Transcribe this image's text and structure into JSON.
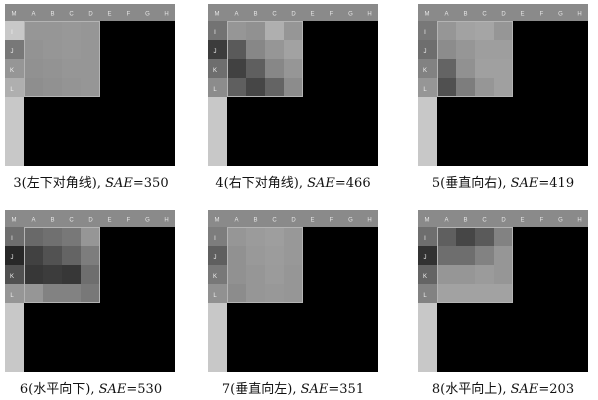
{
  "column_labels": [
    "M",
    "A",
    "B",
    "C",
    "D",
    "E",
    "F",
    "G",
    "H"
  ],
  "row_labels": [
    "I",
    "J",
    "K",
    "L"
  ],
  "colors": {
    "background": "#000000",
    "header_bar": "#8a8a8a",
    "left_bar": "#c8c8c8",
    "block_border": "#b4b4b4"
  },
  "panels": [
    {
      "mode_number": "3",
      "mode_name": "(左下对角线)",
      "metric_label": "SAE",
      "metric_value": "=350",
      "left_labels_gray": [
        200,
        120,
        150,
        175
      ],
      "block": [
        [
          150,
          150,
          152,
          150
        ],
        [
          147,
          150,
          152,
          150
        ],
        [
          145,
          147,
          150,
          150
        ],
        [
          142,
          145,
          148,
          150
        ]
      ]
    },
    {
      "mode_number": "4",
      "mode_name": "(右下对角线)",
      "metric_label": "SAE",
      "metric_value": "=466",
      "left_labels_gray": [
        115,
        60,
        110,
        140
      ],
      "block": [
        [
          150,
          145,
          175,
          150
        ],
        [
          90,
          135,
          150,
          162
        ],
        [
          65,
          95,
          135,
          150
        ],
        [
          95,
          70,
          100,
          140
        ]
      ]
    },
    {
      "mode_number": "5",
      "mode_name": "(垂直向右)",
      "metric_label": "SAE",
      "metric_value": "=419",
      "left_labels_gray": [
        120,
        110,
        130,
        150
      ],
      "block": [
        [
          150,
          162,
          165,
          150
        ],
        [
          140,
          150,
          158,
          158
        ],
        [
          100,
          145,
          160,
          160
        ],
        [
          80,
          125,
          150,
          160
        ]
      ]
    },
    {
      "mode_number": "6",
      "mode_name": "(水平向下)",
      "metric_label": "SAE",
      "metric_value": "=530",
      "left_labels_gray": [
        110,
        40,
        80,
        150
      ],
      "block": [
        [
          105,
          112,
          120,
          150
        ],
        [
          65,
          82,
          100,
          125
        ],
        [
          55,
          60,
          55,
          110
        ],
        [
          150,
          130,
          130,
          120
        ]
      ]
    },
    {
      "mode_number": "7",
      "mode_name": "(垂直向左)",
      "metric_label": "SAE",
      "metric_value": "=351",
      "left_labels_gray": [
        125,
        95,
        120,
        145
      ],
      "block": [
        [
          150,
          155,
          158,
          152
        ],
        [
          145,
          153,
          156,
          152
        ],
        [
          145,
          150,
          155,
          150
        ],
        [
          140,
          150,
          152,
          150
        ]
      ]
    },
    {
      "mode_number": "8",
      "mode_name": "(水平向上)",
      "metric_label": "SAE",
      "metric_value": "=203",
      "left_labels_gray": [
        110,
        50,
        100,
        130
      ],
      "block": [
        [
          95,
          70,
          90,
          130
        ],
        [
          110,
          110,
          130,
          150
        ],
        [
          150,
          150,
          155,
          150
        ],
        [
          162,
          162,
          162,
          162
        ]
      ]
    }
  ]
}
